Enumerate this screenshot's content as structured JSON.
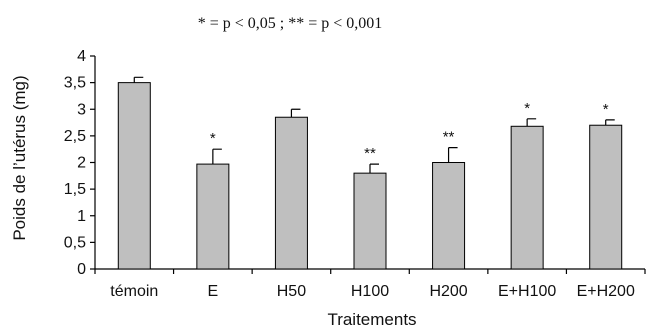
{
  "chart_data": {
    "type": "bar",
    "note": "* = p < 0,05 ; ** = p < 0,001",
    "xlabel": "Traitements",
    "ylabel": "Poids de l’utérus (mg)",
    "ylim": [
      0,
      4
    ],
    "y_ticks": [
      "0",
      "0,5",
      "1",
      "1,5",
      "2",
      "2,5",
      "3",
      "3,5",
      "4"
    ],
    "categories": [
      "témoin",
      "E",
      "H50",
      "H100",
      "H200",
      "E+H100",
      "E+H200"
    ],
    "values": [
      3.5,
      1.97,
      2.85,
      1.8,
      2.0,
      2.68,
      2.7
    ],
    "errors": [
      0.1,
      0.28,
      0.15,
      0.17,
      0.28,
      0.14,
      0.1
    ],
    "significance": [
      "",
      "*",
      "",
      "**",
      "**",
      "*",
      "*"
    ],
    "bar_color": "#bfbfbf",
    "grid": false
  }
}
